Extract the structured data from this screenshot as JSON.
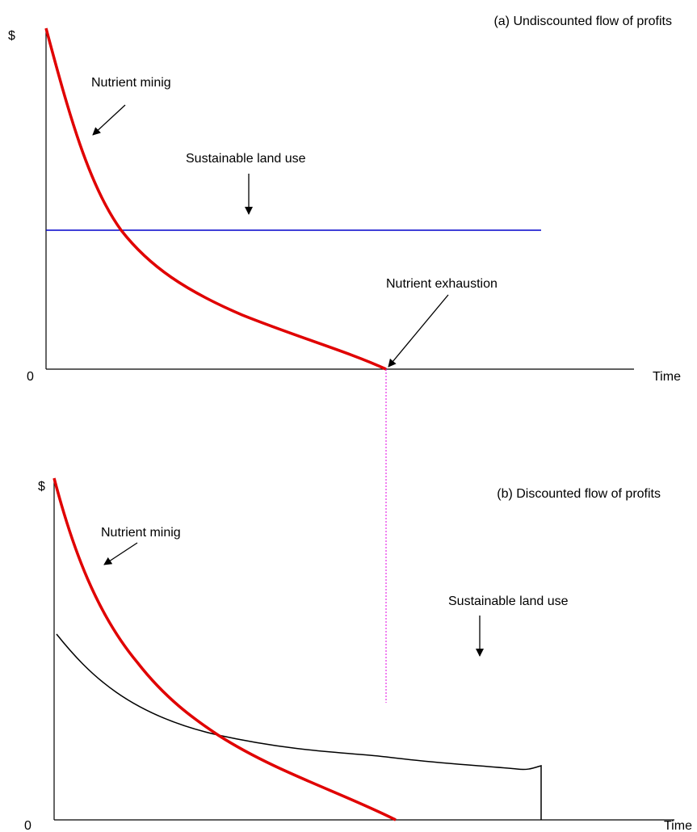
{
  "panels": [
    {
      "title": "(a) Undiscounted flow of profits",
      "y_label": "$",
      "origin": "0",
      "x_label": "Time",
      "annotations": [
        "Nutrient minig",
        "Sustainable land use",
        "Nutrient exhaustion"
      ]
    },
    {
      "title": "(b) Discounted flow of profits",
      "y_label": "$",
      "origin": "0",
      "x_label": "Time",
      "annotations": [
        "Nutrient minig",
        "Sustainable land use"
      ]
    }
  ]
}
